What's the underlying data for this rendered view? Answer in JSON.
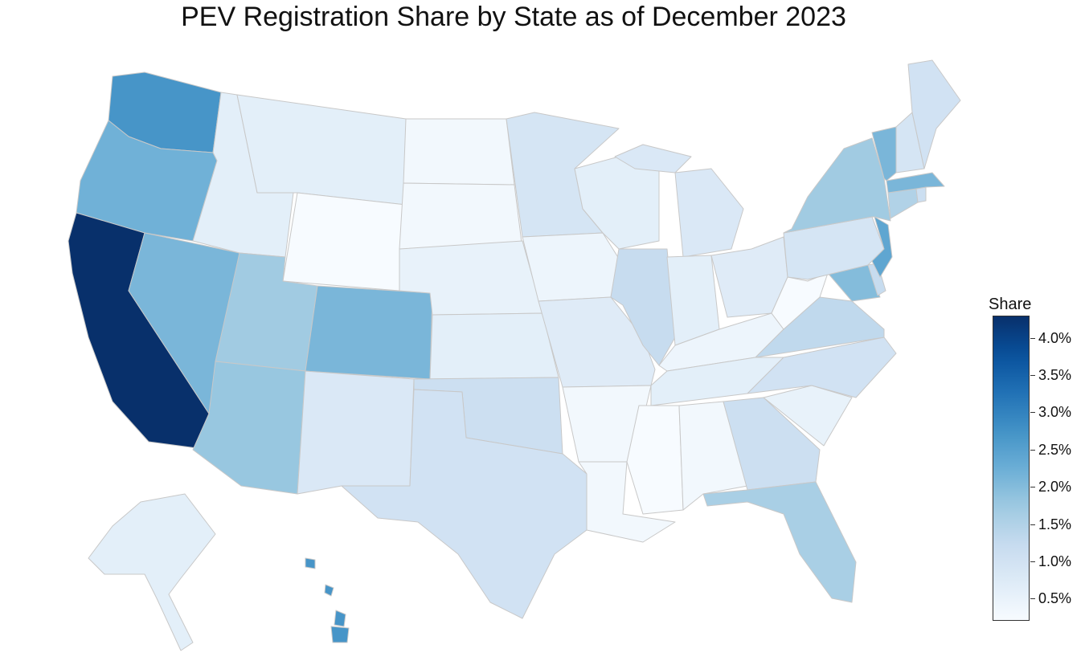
{
  "title": "PEV Registration Share by State as of December 2023",
  "legend": {
    "title": "Share",
    "min": 0.2,
    "max": 4.3,
    "ticks": [
      "0.5%",
      "1.0%",
      "1.5%",
      "2.0%",
      "2.5%",
      "3.0%",
      "3.5%",
      "4.0%"
    ],
    "tick_values": [
      0.5,
      1.0,
      1.5,
      2.0,
      2.5,
      3.0,
      3.5,
      4.0
    ],
    "colormap": "Blues"
  },
  "states": [
    {
      "id": "WA",
      "share": 2.7
    },
    {
      "id": "OR",
      "share": 2.2
    },
    {
      "id": "CA",
      "share": 4.3
    },
    {
      "id": "NV",
      "share": 2.1
    },
    {
      "id": "ID",
      "share": 0.6
    },
    {
      "id": "MT",
      "share": 0.6
    },
    {
      "id": "WY",
      "share": 0.2
    },
    {
      "id": "UT",
      "share": 1.7
    },
    {
      "id": "AZ",
      "share": 1.8
    },
    {
      "id": "CO",
      "share": 2.1
    },
    {
      "id": "NM",
      "share": 0.8
    },
    {
      "id": "ND",
      "share": 0.3
    },
    {
      "id": "SD",
      "share": 0.3
    },
    {
      "id": "NE",
      "share": 0.5
    },
    {
      "id": "KS",
      "share": 0.6
    },
    {
      "id": "OK",
      "share": 1.1
    },
    {
      "id": "TX",
      "share": 1.0
    },
    {
      "id": "MN",
      "share": 0.9
    },
    {
      "id": "IA",
      "share": 0.4
    },
    {
      "id": "MO",
      "share": 0.7
    },
    {
      "id": "AR",
      "share": 0.3
    },
    {
      "id": "LA",
      "share": 0.3
    },
    {
      "id": "WI",
      "share": 0.6
    },
    {
      "id": "IL",
      "share": 1.2
    },
    {
      "id": "MS",
      "share": 0.2
    },
    {
      "id": "MI",
      "share": 0.8
    },
    {
      "id": "IN",
      "share": 0.6
    },
    {
      "id": "KY",
      "share": 0.4
    },
    {
      "id": "TN",
      "share": 0.6
    },
    {
      "id": "AL",
      "share": 0.3
    },
    {
      "id": "OH",
      "share": 0.7
    },
    {
      "id": "WV",
      "share": 0.2
    },
    {
      "id": "GA",
      "share": 1.1
    },
    {
      "id": "FL",
      "share": 1.6
    },
    {
      "id": "SC",
      "share": 0.5
    },
    {
      "id": "NC",
      "share": 1.0
    },
    {
      "id": "VA",
      "share": 1.3
    },
    {
      "id": "MD",
      "share": 2.0
    },
    {
      "id": "DE",
      "share": 1.2
    },
    {
      "id": "NJ",
      "share": 2.4
    },
    {
      "id": "PA",
      "share": 0.9
    },
    {
      "id": "NY",
      "share": 1.7
    },
    {
      "id": "CT",
      "share": 1.5
    },
    {
      "id": "RI",
      "share": 1.1
    },
    {
      "id": "MA",
      "share": 2.1
    },
    {
      "id": "VT",
      "share": 2.1
    },
    {
      "id": "NH",
      "share": 0.9
    },
    {
      "id": "ME",
      "share": 1.0
    },
    {
      "id": "AK",
      "share": 0.6
    },
    {
      "id": "HI",
      "share": 2.7
    }
  ]
}
